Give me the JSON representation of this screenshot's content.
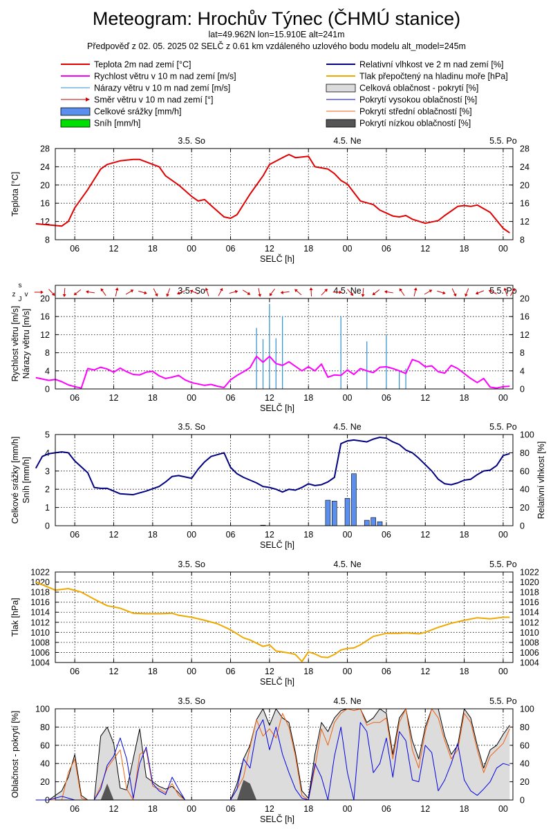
{
  "header": {
    "title": "Meteogram: Hrochův Týnec (ČHMÚ stanice)",
    "coords": "lat=49.962N lon=15.910E alt=241m",
    "forecast": "Předpověď z 02. 05. 2025 02 SELČ z 0.61 km vzdáleného uzlového bodu modelu alt_model=245m"
  },
  "legend": [
    {
      "label": "Teplota 2m nad zemí [°C]",
      "style": "line",
      "color": "#e00000"
    },
    {
      "label": "Relativní vlhkost ve 2 m nad zemí [%]",
      "style": "line",
      "color": "#000080"
    },
    {
      "label": "Rychlost větru v 10 m nad zemí [m/s]",
      "style": "line",
      "color": "#ff00ff"
    },
    {
      "label": "Tlak přepočtený na hladinu moře [hPa]",
      "style": "line",
      "color": "#f0a800"
    },
    {
      "label": "Nárazy větru v 10 m nad zemí [m/s]",
      "style": "thin",
      "color": "#2a8fcf"
    },
    {
      "label": "Celková oblačnost - pokrytí [%]",
      "style": "box",
      "color": "#dcdcdc"
    },
    {
      "label": "Směr větru v 10 m nad zemí [°]",
      "style": "arrow",
      "color": "#cc0000"
    },
    {
      "label": "Pokrytí vysokou oblačností [%]",
      "style": "thin",
      "color": "#0000e0"
    },
    {
      "label": "Celkové srážky [mm/h]",
      "style": "box",
      "color": "#5a8ff0"
    },
    {
      "label": "Pokrytí střední oblačností [%]",
      "style": "thin",
      "color": "#f06010"
    },
    {
      "label": "Sníh [mm/h]",
      "style": "box",
      "color": "#00e000"
    },
    {
      "label": "Pokrytí nízkou oblačností [%]",
      "style": "box",
      "color": "#555555"
    }
  ],
  "days": [
    {
      "label": "3.5. So",
      "hour": 24
    },
    {
      "label": "4.5. Ne",
      "hour": 48
    },
    {
      "label": "5.5. Po",
      "hour": 72
    }
  ],
  "xlabel": "SELČ [h]",
  "xticks": [
    "06",
    "12",
    "18",
    "00",
    "06",
    "12",
    "18",
    "00",
    "06",
    "12",
    "18",
    "00"
  ],
  "chart_data": [
    {
      "type": "line",
      "ylabel": "Teplota [°C]",
      "ylim": [
        8,
        28
      ],
      "yticks": [
        "8",
        "12",
        "16",
        "20",
        "24",
        "28"
      ],
      "x_hours_from_start": [
        0,
        4,
        5,
        6,
        8,
        10,
        11,
        13,
        15,
        16,
        19,
        20,
        21,
        22,
        24,
        25,
        26,
        27,
        29,
        30,
        31,
        33,
        35,
        36,
        38,
        39,
        40,
        42,
        43,
        45,
        46,
        47,
        48,
        50,
        52,
        53,
        55,
        56,
        57,
        58,
        60,
        62,
        63,
        65,
        66,
        67,
        68,
        70,
        72,
        73
      ],
      "series": [
        {
          "name": "Teplota 2m nad zemí [°C]",
          "color": "#e00000",
          "values": [
            11.5,
            11,
            12,
            15,
            19,
            23.5,
            24.5,
            25.3,
            25.6,
            25.6,
            24,
            22,
            21,
            20,
            17.5,
            16.5,
            16.8,
            15.5,
            13,
            12.7,
            13.5,
            18,
            22,
            24.5,
            26,
            26.7,
            26,
            26.3,
            24,
            23.5,
            22.5,
            21,
            20.2,
            16.5,
            15.7,
            14.5,
            13.2,
            13,
            13.3,
            12.5,
            11.6,
            12.2,
            13.3,
            15.3,
            15.5,
            15.3,
            15.6,
            14,
            10.5,
            9.5
          ]
        }
      ]
    },
    {
      "type": "line",
      "ylabel": "Rychlost větru [m/s]",
      "ylabel2": "Nárazy větru [m/s]",
      "ylim": [
        0,
        20
      ],
      "yticks": [
        "0",
        "4",
        "8",
        "12",
        "16",
        "20"
      ],
      "x_hours_from_start": [
        0,
        2,
        3,
        4,
        5,
        6,
        7,
        8,
        9,
        10,
        11,
        12,
        13,
        14,
        15,
        16,
        17,
        18,
        19,
        20,
        21,
        22,
        23,
        24,
        25,
        26,
        27,
        28,
        29,
        30,
        31,
        32,
        33,
        34,
        35,
        36,
        37,
        38,
        39,
        40,
        41,
        42,
        43,
        44,
        45,
        46,
        47,
        48,
        49,
        50,
        51,
        52,
        53,
        54,
        55,
        56,
        57,
        58,
        59,
        60,
        61,
        62,
        63,
        64,
        65,
        66,
        67,
        68,
        69,
        70,
        71,
        72,
        73
      ],
      "series": [
        {
          "name": "Rychlost větru v 10 m nad zemí [m/s]",
          "color": "#ff00ff",
          "values": [
            2.5,
            1.9,
            2.1,
            1.6,
            0.9,
            0.5,
            0.2,
            4.5,
            4.2,
            4.8,
            4.4,
            3.7,
            4.6,
            3.8,
            3.2,
            3.1,
            3.7,
            3.9,
            2.9,
            2.3,
            2.6,
            3,
            2,
            1.4,
            1.1,
            0.8,
            1,
            0.6,
            0.3,
            2,
            3,
            3.8,
            4.7,
            7.2,
            5.9,
            7.2,
            5.6,
            5.2,
            6,
            5,
            4,
            4.9,
            4,
            5.5,
            2.6,
            3.1,
            3,
            4.2,
            3.2,
            4.5,
            4,
            3.6,
            4.8,
            4.9,
            4.5,
            4,
            3.4,
            6.5,
            6,
            4.9,
            5.1,
            3.8,
            3.5,
            5.2,
            4.5,
            3.4,
            2.3,
            1.4,
            2.3,
            0.4,
            0.2,
            0.5,
            0.6
          ]
        },
        {
          "name": "Nárazy větru v 10 m nad zemí [m/s]",
          "color": "#2a8fcf",
          "x": [
            34,
            35,
            36,
            37,
            38,
            47,
            51,
            54,
            56,
            57
          ],
          "values": [
            13.5,
            11,
            18.8,
            11.2,
            16.1,
            16.1,
            10.5,
            11.8,
            4.2,
            4.5
          ]
        }
      ],
      "wind_dir_x": [
        0,
        2,
        4,
        6,
        8,
        10,
        12,
        14,
        16,
        18,
        20,
        22,
        24,
        26,
        28,
        30,
        32,
        34,
        36,
        38,
        40,
        42,
        44,
        46,
        48,
        50,
        52,
        54,
        56,
        58,
        60,
        62,
        64,
        66,
        68,
        70,
        72,
        73
      ]
    },
    {
      "type": "bar",
      "ylabel": "Celkové srážky [mm/h]",
      "ylabel2": "Sníh [mm/h]",
      "ylabel_right": "Relativní vlhkost [%]",
      "ylim": [
        0,
        5
      ],
      "ylim_right": [
        0,
        100
      ],
      "yticks": [
        "0",
        "1",
        "2",
        "3",
        "4",
        "5"
      ],
      "yticks_right": [
        "0",
        "20",
        "40",
        "60",
        "80",
        "100"
      ],
      "bars_x": [
        35,
        45,
        46,
        48,
        49,
        51,
        52,
        53
      ],
      "bars_values": [
        0.03,
        1.4,
        1.35,
        1.5,
        2.85,
        0.3,
        0.45,
        0.22
      ],
      "x_hours_from_start": [
        0,
        1,
        2,
        3,
        4,
        5,
        6,
        8,
        9,
        10,
        11,
        13,
        15,
        17,
        19,
        20,
        21,
        22,
        24,
        25,
        26,
        27,
        29,
        30,
        31,
        32,
        33,
        34,
        35,
        36,
        37,
        38,
        39,
        40,
        41,
        42,
        43,
        44,
        45,
        46,
        47,
        48,
        49,
        50,
        51,
        52,
        53,
        54,
        55,
        56,
        57,
        58,
        59,
        60,
        61,
        62,
        63,
        64,
        65,
        66,
        67,
        68,
        69,
        70,
        71,
        72,
        73
      ],
      "series": [
        {
          "name": "Relativní vlhkost ve 2 m nad zemí [%]",
          "color": "#000080",
          "values": [
            63,
            76,
            79,
            80,
            81,
            80,
            71,
            58,
            42,
            41,
            41,
            35,
            34,
            38,
            43,
            48,
            54,
            55,
            52,
            62,
            70,
            76,
            80,
            64,
            57,
            53,
            50,
            47,
            43,
            42,
            40,
            37,
            40,
            39,
            42,
            46,
            44,
            45,
            48,
            53,
            90,
            93,
            94,
            93,
            92,
            95,
            97,
            96,
            92,
            89,
            83,
            80,
            74,
            67,
            60,
            51,
            46,
            45,
            47,
            50,
            51,
            56,
            60,
            61,
            66,
            77,
            79
          ]
        }
      ]
    },
    {
      "type": "line",
      "ylabel": "Tlak [hPa]",
      "ylim": [
        1004,
        1022
      ],
      "yticks": [
        "1004",
        "1006",
        "1008",
        "1010",
        "1012",
        "1014",
        "1016",
        "1018",
        "1020",
        "1022"
      ],
      "x_hours_from_start": [
        0,
        3,
        5,
        7,
        9,
        11,
        13,
        15,
        17,
        19,
        21,
        22,
        24,
        26,
        28,
        30,
        32,
        33,
        35,
        36,
        37,
        38,
        39,
        40,
        41,
        42,
        43,
        44,
        45,
        46,
        47,
        48,
        49,
        50,
        52,
        54,
        56,
        57,
        58,
        59,
        60,
        62,
        64,
        66,
        68,
        70,
        72,
        73
      ],
      "series": [
        {
          "name": "Tlak přepočtený na hladinu moře [hPa]",
          "color": "#f0a800",
          "values": [
            1020,
            1018.4,
            1018.7,
            1018,
            1016.6,
            1015.3,
            1014.8,
            1013.8,
            1013.7,
            1013.7,
            1013.8,
            1013.4,
            1013,
            1012.4,
            1011.7,
            1010.5,
            1008.9,
            1008.5,
            1007.2,
            1007.5,
            1006.3,
            1006.1,
            1005.9,
            1005.6,
            1004.2,
            1006.1,
            1005.7,
            1005.1,
            1005,
            1005.6,
            1006.5,
            1006.8,
            1006.9,
            1007.5,
            1009.2,
            1009.8,
            1009.8,
            1009.9,
            1009.8,
            1009.7,
            1010,
            1011,
            1011.8,
            1012.4,
            1012.9,
            1012.7,
            1013,
            1013
          ]
        }
      ]
    },
    {
      "type": "area",
      "ylabel": "Oblačnost - pokrytí [%]",
      "ylim": [
        0,
        100
      ],
      "yticks": [
        "0",
        "20",
        "40",
        "60",
        "80",
        "100"
      ],
      "x_hours_from_start": [
        0,
        1,
        2,
        3,
        4,
        5,
        6,
        7,
        8,
        9,
        10,
        11,
        12,
        13,
        14,
        15,
        16,
        17,
        18,
        19,
        20,
        21,
        22,
        23,
        24,
        25,
        26,
        27,
        28,
        29,
        30,
        31,
        32,
        33,
        34,
        35,
        36,
        37,
        38,
        39,
        40,
        41,
        42,
        43,
        44,
        45,
        46,
        47,
        48,
        49,
        50,
        51,
        52,
        53,
        54,
        55,
        56,
        57,
        58,
        59,
        60,
        61,
        62,
        63,
        64,
        65,
        66,
        67,
        68,
        69,
        70,
        71,
        72,
        73
      ],
      "series": [
        {
          "name": "Celková oblačnost - pokrytí [%]",
          "color": "#dcdcdc",
          "values": [
            0,
            0,
            0,
            5,
            10,
            25,
            50,
            5,
            0,
            0,
            70,
            80,
            62,
            13,
            11,
            45,
            78,
            25,
            20,
            15,
            12,
            15,
            8,
            0,
            0,
            0,
            0,
            0,
            0,
            0,
            0,
            18,
            45,
            60,
            88,
            100,
            82,
            100,
            90,
            85,
            52,
            10,
            2,
            50,
            85,
            75,
            90,
            98,
            100,
            100,
            100,
            85,
            90,
            100,
            95,
            50,
            90,
            100,
            65,
            45,
            80,
            100,
            100,
            70,
            50,
            60,
            100,
            90,
            60,
            35,
            55,
            60,
            72,
            82
          ]
        },
        {
          "name": "Pokrytí vysokou oblačností [%]",
          "color": "#0000e0",
          "values": [
            0,
            0,
            0,
            2,
            4,
            2,
            0,
            0,
            0,
            0,
            12,
            38,
            48,
            68,
            45,
            2,
            40,
            58,
            18,
            10,
            6,
            25,
            12,
            0,
            0,
            0,
            0,
            0,
            0,
            0,
            0,
            12,
            45,
            35,
            75,
            88,
            55,
            80,
            50,
            30,
            12,
            2,
            0,
            40,
            25,
            0,
            48,
            80,
            30,
            0,
            85,
            75,
            30,
            40,
            68,
            25,
            75,
            65,
            22,
            20,
            60,
            52,
            10,
            22,
            40,
            62,
            22,
            10,
            5,
            12,
            20,
            35,
            40,
            38
          ]
        },
        {
          "name": "Pokrytí střední oblačností [%]",
          "color": "#f06010",
          "values": [
            0,
            0,
            0,
            0,
            0,
            30,
            45,
            2,
            0,
            0,
            15,
            35,
            45,
            55,
            12,
            0,
            50,
            55,
            15,
            12,
            8,
            18,
            5,
            0,
            0,
            0,
            0,
            0,
            0,
            0,
            0,
            12,
            25,
            58,
            88,
            70,
            78,
            68,
            95,
            80,
            48,
            5,
            0,
            35,
            78,
            60,
            85,
            95,
            100,
            98,
            100,
            82,
            85,
            85,
            90,
            45,
            85,
            100,
            55,
            35,
            75,
            100,
            90,
            65,
            45,
            55,
            95,
            85,
            55,
            30,
            48,
            55,
            62,
            78
          ]
        },
        {
          "name": "Pokrytí nízkou oblačností [%]",
          "color": "#555555",
          "values": [
            0,
            0,
            0,
            0,
            0,
            0,
            0,
            0,
            0,
            0,
            0,
            18,
            0,
            0,
            0,
            0,
            0,
            0,
            0,
            0,
            0,
            0,
            0,
            0,
            0,
            0,
            0,
            0,
            0,
            0,
            0,
            0,
            22,
            18,
            0,
            0,
            0,
            0,
            0,
            0,
            0,
            0,
            0,
            0,
            0,
            0,
            0,
            0,
            0,
            0,
            0,
            0,
            0,
            0,
            0,
            0,
            0,
            0,
            0,
            0,
            0,
            0,
            0,
            0,
            0,
            0,
            0,
            0,
            0,
            0,
            0,
            0,
            0,
            0
          ]
        }
      ]
    }
  ]
}
